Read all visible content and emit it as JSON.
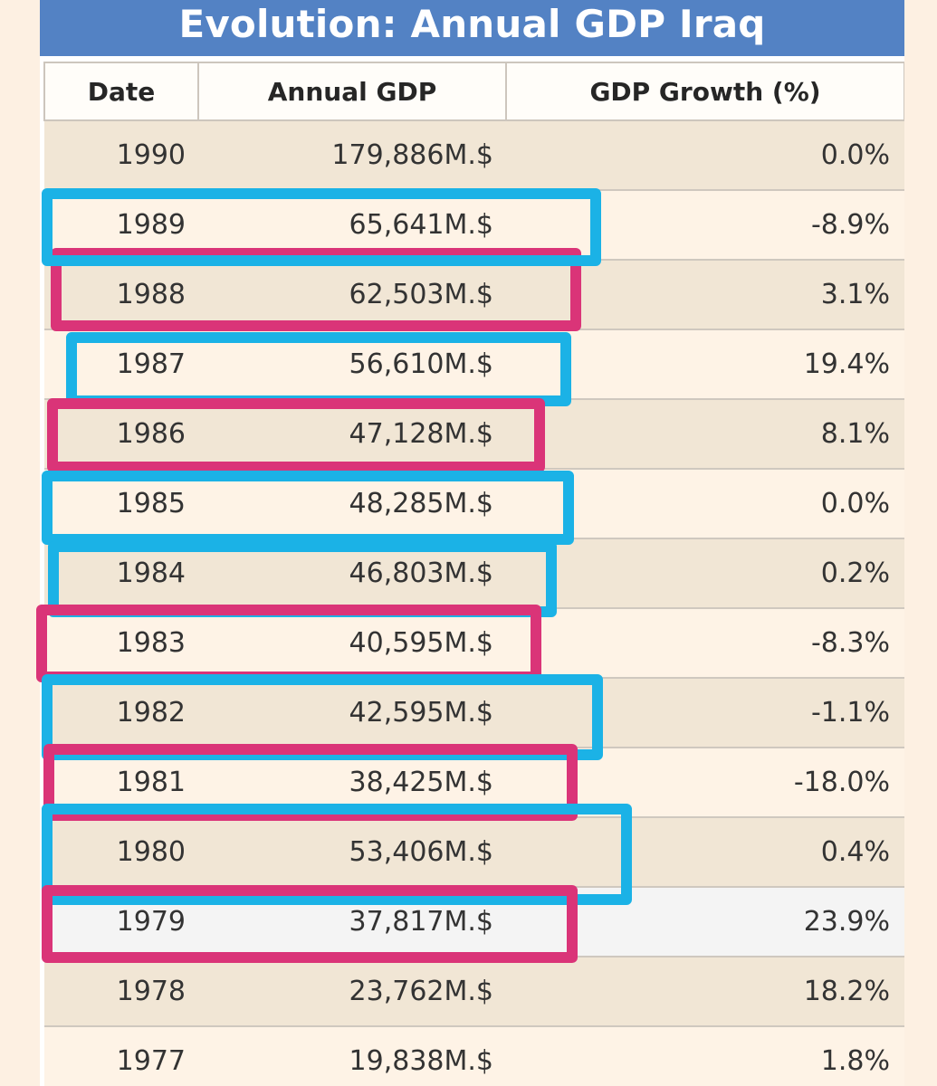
{
  "title": "Evolution: Annual GDP Iraq",
  "table": {
    "headers": [
      "Date",
      "Annual GDP",
      "GDP Growth (%)"
    ],
    "rows": [
      {
        "date": "1990",
        "gdp": "179,886M.$",
        "growth": "0.0%"
      },
      {
        "date": "1989",
        "gdp": "65,641M.$",
        "growth": "-8.9%"
      },
      {
        "date": "1988",
        "gdp": "62,503M.$",
        "growth": "3.1%"
      },
      {
        "date": "1987",
        "gdp": "56,610M.$",
        "growth": "19.4%"
      },
      {
        "date": "1986",
        "gdp": "47,128M.$",
        "growth": "8.1%"
      },
      {
        "date": "1985",
        "gdp": "48,285M.$",
        "growth": "0.0%"
      },
      {
        "date": "1984",
        "gdp": "46,803M.$",
        "growth": "0.2%"
      },
      {
        "date": "1983",
        "gdp": "40,595M.$",
        "growth": "-8.3%"
      },
      {
        "date": "1982",
        "gdp": "42,595M.$",
        "growth": "-1.1%"
      },
      {
        "date": "1981",
        "gdp": "38,425M.$",
        "growth": "-18.0%"
      },
      {
        "date": "1980",
        "gdp": "53,406M.$",
        "growth": "0.4%"
      },
      {
        "date": "1979",
        "gdp": "37,817M.$",
        "growth": "23.9%"
      },
      {
        "date": "1978",
        "gdp": "23,762M.$",
        "growth": "18.2%"
      },
      {
        "date": "1977",
        "gdp": "19,838M.$",
        "growth": "1.8%"
      }
    ]
  },
  "highlight_colors": {
    "blue": "#1bb2e6",
    "pink": "#da3478"
  },
  "colors": {
    "title_bar": "#5382c4",
    "row_odd": "#f1e6d5",
    "row_even": "#fef3e6"
  }
}
